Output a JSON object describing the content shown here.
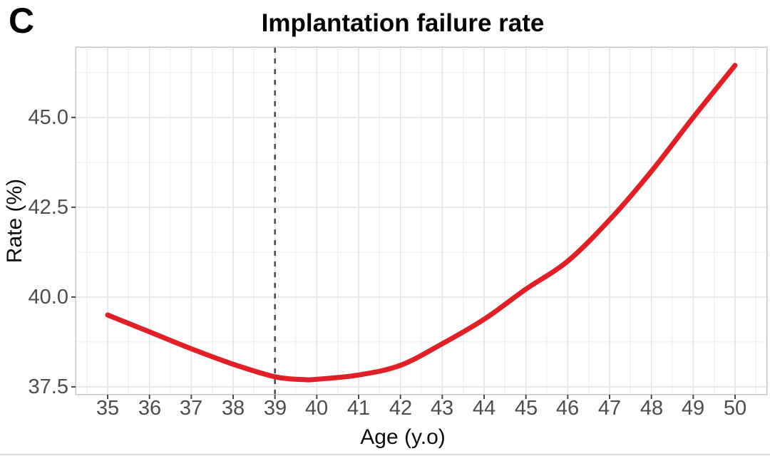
{
  "panel_label": "C",
  "title": "Implantation failure rate",
  "axes": {
    "x_title": "Age (y.o)",
    "y_title": "Rate (%)"
  },
  "chart_data": {
    "type": "line",
    "title": "Implantation failure rate",
    "xlabel": "Age (y.o)",
    "ylabel": "Rate (%)",
    "xlim": [
      34.25,
      50.75
    ],
    "ylim": [
      37.3,
      46.94
    ],
    "x_ticks": [
      35,
      36,
      37,
      38,
      39,
      40,
      41,
      42,
      43,
      44,
      45,
      46,
      47,
      48,
      49,
      50
    ],
    "x_tick_labels": [
      "35",
      "36",
      "37",
      "38",
      "39",
      "40",
      "41",
      "42",
      "43",
      "44",
      "45",
      "46",
      "47",
      "48",
      "49",
      "50"
    ],
    "y_ticks": [
      37.5,
      40.0,
      42.5,
      45.0
    ],
    "y_tick_labels": [
      "37.5",
      "40.0",
      "42.5",
      "45.0"
    ],
    "grid": "major and minor gridlines, light gray on white panel, gray panel border",
    "legend_position": "none",
    "reference_line": {
      "orientation": "vertical",
      "x": 39,
      "style": "dashed"
    },
    "series": [
      {
        "name": "implantation-failure-rate-curve",
        "type": "smooth-line",
        "points": [
          [
            35.0,
            39.5
          ],
          [
            36.0,
            39.03
          ],
          [
            37.0,
            38.56
          ],
          [
            38.0,
            38.13
          ],
          [
            39.0,
            37.78
          ],
          [
            39.7,
            37.7
          ],
          [
            40.0,
            37.71
          ],
          [
            41.0,
            37.83
          ],
          [
            42.0,
            38.1
          ],
          [
            43.0,
            38.7
          ],
          [
            44.0,
            39.38
          ],
          [
            45.0,
            40.22
          ],
          [
            46.0,
            41.0
          ],
          [
            47.0,
            42.15
          ],
          [
            48.0,
            43.5
          ],
          [
            49.0,
            45.0
          ],
          [
            50.0,
            46.45
          ]
        ]
      }
    ]
  },
  "colors": {
    "curve": "#e02027",
    "reference_line": "#4f4f4f",
    "grid_major": "#e3e3e3",
    "grid_minor": "#f0f0f0",
    "panel_border": "#c6c6c6",
    "axis_tick": "#454545",
    "tick_label": "#4d4d4d",
    "axis_title": "#0c0c0c",
    "title": "#050505",
    "background": "#ffffff"
  }
}
